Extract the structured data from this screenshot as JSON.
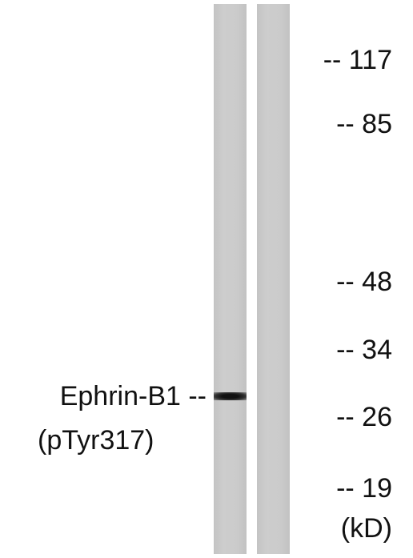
{
  "blot": {
    "markers": [
      "-- 117",
      "-- 85",
      "-- 48",
      "-- 34",
      "-- 26",
      "-- 19"
    ],
    "unit": "(kD)",
    "band_label": {
      "name": "Ephrin-B1 --",
      "modification": "(pTyr317)"
    }
  }
}
